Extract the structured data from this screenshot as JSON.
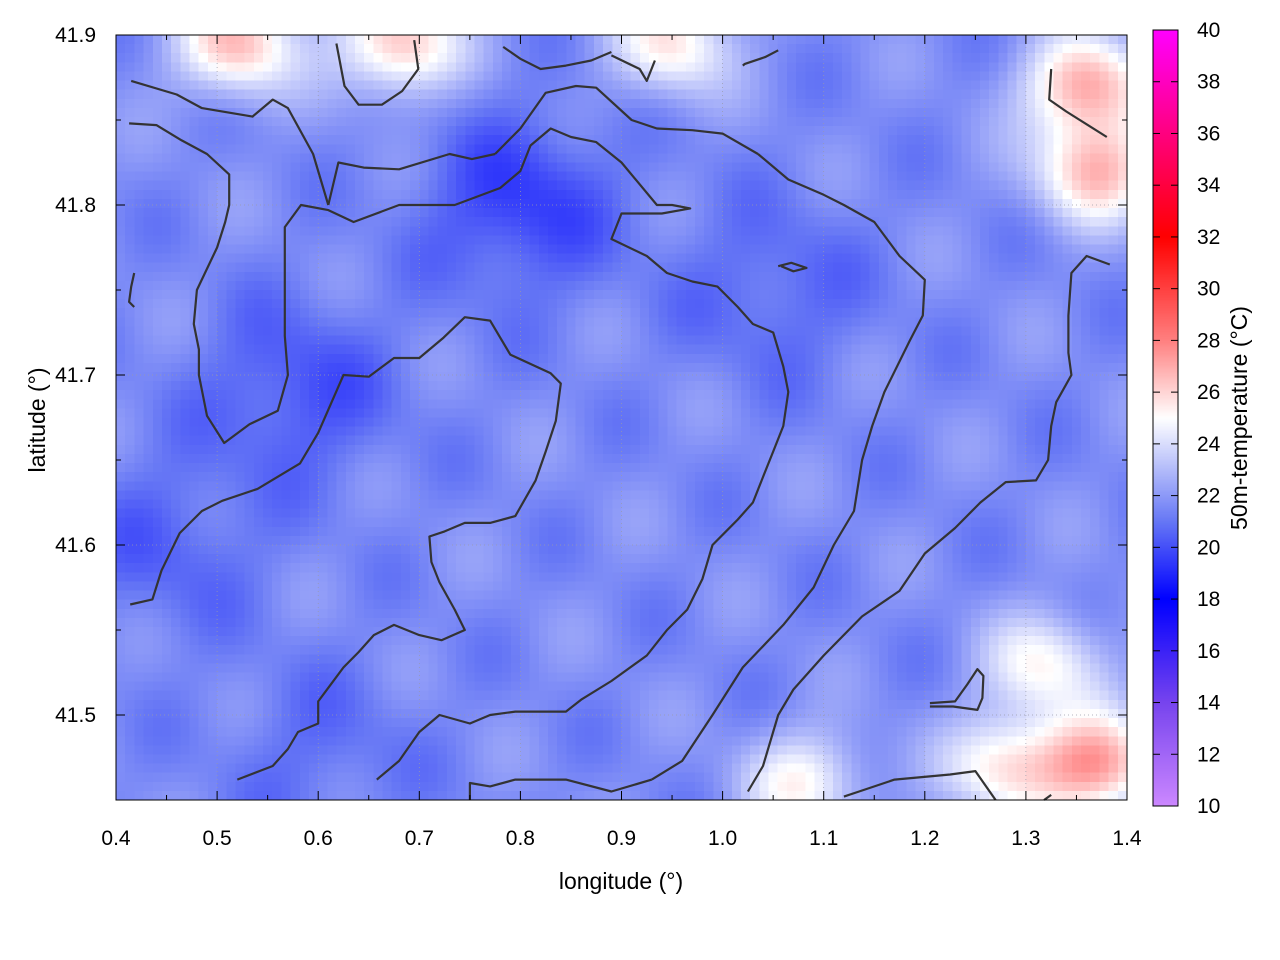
{
  "chart_data": {
    "type": "heatmap",
    "title": "",
    "xlabel": "longitude (°)",
    "ylabel": "latitude (°)",
    "colorbar_label": "50m-temperature (°C)",
    "xlim": [
      0.4,
      1.4
    ],
    "ylim": [
      41.45,
      41.9
    ],
    "x_ticks": [
      0.4,
      0.5,
      0.6,
      0.7,
      0.8,
      0.9,
      1.0,
      1.1,
      1.2,
      1.3,
      1.4
    ],
    "x_tick_labels": [
      "0.4",
      "0.5",
      "0.6",
      "0.7",
      "0.8",
      "0.9",
      "1.0",
      "1.1",
      "1.2",
      "1.3",
      "1.4"
    ],
    "y_ticks": [
      41.5,
      41.6,
      41.7,
      41.8,
      41.9
    ],
    "y_tick_labels": [
      "41.5",
      "41.6",
      "41.7",
      "41.8",
      "41.9"
    ],
    "colorbar_range": [
      10,
      40
    ],
    "colorbar_ticks": [
      10,
      12,
      14,
      16,
      18,
      20,
      22,
      24,
      26,
      28,
      30,
      32,
      34,
      36,
      38,
      40
    ],
    "colorbar_tick_labels": [
      "10",
      "12",
      "14",
      "16",
      "18",
      "20",
      "22",
      "24",
      "26",
      "28",
      "30",
      "32",
      "34",
      "36",
      "38",
      "40"
    ],
    "colormap_stops": [
      {
        "value": 10,
        "color": "#cc88ff"
      },
      {
        "value": 14,
        "color": "#7744ee"
      },
      {
        "value": 18,
        "color": "#0000ff"
      },
      {
        "value": 21,
        "color": "#6677f5"
      },
      {
        "value": 25,
        "color": "#ffffff"
      },
      {
        "value": 28,
        "color": "#ff8080"
      },
      {
        "value": 32,
        "color": "#ff0000"
      },
      {
        "value": 40,
        "color": "#ff00ff"
      }
    ],
    "grid": true,
    "contour_color": "#333333",
    "field": {
      "base_value": 21.6,
      "warm_regions": [
        {
          "lon": 0.52,
          "lat": 41.895,
          "peak": 26.5
        },
        {
          "lon": 0.68,
          "lat": 41.895,
          "peak": 26.5
        },
        {
          "lon": 0.95,
          "lat": 41.895,
          "peak": 25.5
        },
        {
          "lon": 1.36,
          "lat": 41.87,
          "peak": 27.0
        },
        {
          "lon": 1.37,
          "lat": 41.82,
          "peak": 26.5
        },
        {
          "lon": 1.28,
          "lat": 41.47,
          "peak": 25.5
        },
        {
          "lon": 1.37,
          "lat": 41.47,
          "peak": 27.0
        },
        {
          "lon": 1.08,
          "lat": 41.46,
          "peak": 25.0
        },
        {
          "lon": 1.32,
          "lat": 41.53,
          "peak": 25.0
        }
      ],
      "cool_regions": [
        {
          "lon": 0.8,
          "lat": 41.8,
          "peak": 19.5
        },
        {
          "lon": 0.58,
          "lat": 41.69,
          "peak": 20.0
        },
        {
          "lon": 0.45,
          "lat": 41.6,
          "peak": 20.5
        },
        {
          "lon": 1.05,
          "lat": 41.75,
          "peak": 20.5
        },
        {
          "lon": 0.6,
          "lat": 41.48,
          "peak": 20.8
        }
      ]
    },
    "contours": [
      [
        [
          0.415,
          41.873
        ],
        [
          0.46,
          41.865
        ],
        [
          0.485,
          41.857
        ],
        [
          0.535,
          41.852
        ],
        [
          0.555,
          41.862
        ],
        [
          0.57,
          41.857
        ],
        [
          0.595,
          41.83
        ],
        [
          0.61,
          41.8
        ]
      ],
      [
        [
          0.61,
          41.8
        ],
        [
          0.62,
          41.825
        ],
        [
          0.645,
          41.822
        ],
        [
          0.68,
          41.821
        ],
        [
          0.73,
          41.83
        ],
        [
          0.752,
          41.827
        ],
        [
          0.775,
          41.83
        ]
      ],
      [
        [
          0.775,
          41.83
        ],
        [
          0.8,
          41.845
        ],
        [
          0.825,
          41.866
        ],
        [
          0.855,
          41.87
        ],
        [
          0.875,
          41.869
        ],
        [
          0.91,
          41.85
        ],
        [
          0.935,
          41.845
        ],
        [
          0.97,
          41.844
        ],
        [
          1.0,
          41.842
        ],
        [
          1.035,
          41.83
        ]
      ],
      [
        [
          1.035,
          41.83
        ],
        [
          1.065,
          41.815
        ],
        [
          1.1,
          41.806
        ],
        [
          1.12,
          41.8
        ],
        [
          1.15,
          41.79
        ],
        [
          1.175,
          41.77
        ],
        [
          1.2,
          41.756
        ],
        [
          1.198,
          41.735
        ],
        [
          1.185,
          41.72
        ],
        [
          1.16,
          41.69
        ],
        [
          1.148,
          41.67
        ],
        [
          1.138,
          41.65
        ],
        [
          1.13,
          41.62
        ],
        [
          1.11,
          41.6
        ],
        [
          1.09,
          41.575
        ],
        [
          1.06,
          41.553
        ],
        [
          1.02,
          41.528
        ],
        [
          0.99,
          41.5
        ],
        [
          0.96,
          41.473
        ],
        [
          0.93,
          41.462
        ]
      ],
      [
        [
          0.93,
          41.462
        ],
        [
          0.89,
          41.455
        ],
        [
          0.845,
          41.462
        ],
        [
          0.795,
          41.462
        ],
        [
          0.77,
          41.458
        ],
        [
          0.75,
          41.46
        ],
        [
          0.75,
          41.45
        ]
      ],
      [
        [
          0.413,
          41.848
        ],
        [
          0.44,
          41.847
        ],
        [
          0.465,
          41.838
        ],
        [
          0.49,
          41.83
        ],
        [
          0.512,
          41.818
        ],
        [
          0.512,
          41.8
        ],
        [
          0.508,
          41.79
        ],
        [
          0.5,
          41.775
        ],
        [
          0.48,
          41.75
        ],
        [
          0.477,
          41.73
        ],
        [
          0.482,
          41.715
        ],
        [
          0.482,
          41.7
        ],
        [
          0.49,
          41.676
        ],
        [
          0.507,
          41.66
        ],
        [
          0.532,
          41.671
        ],
        [
          0.56,
          41.679
        ],
        [
          0.57,
          41.7
        ],
        [
          0.567,
          41.723
        ],
        [
          0.567,
          41.75
        ],
        [
          0.567,
          41.787
        ],
        [
          0.583,
          41.8
        ],
        [
          0.61,
          41.797
        ],
        [
          0.635,
          41.79
        ],
        [
          0.68,
          41.8
        ],
        [
          0.735,
          41.8
        ],
        [
          0.78,
          41.81
        ],
        [
          0.8,
          41.82
        ],
        [
          0.81,
          41.835
        ],
        [
          0.83,
          41.845
        ],
        [
          0.85,
          41.84
        ],
        [
          0.875,
          41.837
        ],
        [
          0.9,
          41.825
        ],
        [
          0.935,
          41.8
        ],
        [
          0.95,
          41.8
        ],
        [
          0.968,
          41.798
        ],
        [
          0.94,
          41.795
        ],
        [
          0.9,
          41.795
        ],
        [
          0.89,
          41.78
        ],
        [
          0.925,
          41.77
        ],
        [
          0.945,
          41.76
        ],
        [
          0.97,
          41.755
        ],
        [
          0.995,
          41.752
        ],
        [
          1.015,
          41.74
        ],
        [
          1.03,
          41.73
        ],
        [
          1.05,
          41.725
        ],
        [
          1.06,
          41.705
        ],
        [
          1.065,
          41.69
        ],
        [
          1.06,
          41.67
        ],
        [
          1.05,
          41.655
        ],
        [
          1.04,
          41.64
        ],
        [
          1.03,
          41.625
        ],
        [
          1.015,
          41.615
        ],
        [
          1.005,
          41.609
        ],
        [
          0.99,
          41.6
        ],
        [
          0.98,
          41.58
        ],
        [
          0.965,
          41.562
        ],
        [
          0.945,
          41.55
        ],
        [
          0.925,
          41.535
        ],
        [
          0.89,
          41.52
        ],
        [
          0.86,
          41.509
        ],
        [
          0.845,
          41.502
        ],
        [
          0.795,
          41.502
        ],
        [
          0.77,
          41.5
        ],
        [
          0.75,
          41.495
        ],
        [
          0.72,
          41.5
        ],
        [
          0.7,
          41.49
        ],
        [
          0.68,
          41.473
        ],
        [
          0.658,
          41.462
        ]
      ],
      [
        [
          0.414,
          41.565
        ],
        [
          0.436,
          41.568
        ],
        [
          0.445,
          41.585
        ],
        [
          0.463,
          41.607
        ],
        [
          0.485,
          41.62
        ],
        [
          0.505,
          41.626
        ],
        [
          0.54,
          41.633
        ],
        [
          0.568,
          41.643
        ],
        [
          0.582,
          41.648
        ],
        [
          0.6,
          41.666
        ],
        [
          0.625,
          41.7
        ],
        [
          0.65,
          41.699
        ],
        [
          0.675,
          41.71
        ],
        [
          0.7,
          41.71
        ],
        [
          0.724,
          41.722
        ],
        [
          0.745,
          41.734
        ],
        [
          0.77,
          41.732
        ],
        [
          0.79,
          41.712
        ],
        [
          0.83,
          41.701
        ],
        [
          0.84,
          41.695
        ],
        [
          0.835,
          41.673
        ],
        [
          0.825,
          41.655
        ],
        [
          0.815,
          41.638
        ],
        [
          0.795,
          41.617
        ],
        [
          0.77,
          41.613
        ],
        [
          0.745,
          41.613
        ],
        [
          0.725,
          41.608
        ],
        [
          0.71,
          41.605
        ],
        [
          0.712,
          41.59
        ],
        [
          0.72,
          41.578
        ],
        [
          0.735,
          41.562
        ],
        [
          0.745,
          41.55
        ],
        [
          0.722,
          41.544
        ],
        [
          0.7,
          41.547
        ],
        [
          0.675,
          41.553
        ],
        [
          0.655,
          41.547
        ],
        [
          0.64,
          41.537
        ],
        [
          0.625,
          41.528
        ],
        [
          0.61,
          41.516
        ],
        [
          0.6,
          41.508
        ],
        [
          0.6,
          41.495
        ],
        [
          0.58,
          41.49
        ],
        [
          0.57,
          41.48
        ],
        [
          0.555,
          41.47
        ],
        [
          0.52,
          41.462
        ]
      ],
      [
        [
          1.12,
          41.452
        ],
        [
          1.135,
          41.455
        ],
        [
          1.17,
          41.462
        ],
        [
          1.225,
          41.465
        ],
        [
          1.25,
          41.467
        ],
        [
          1.27,
          41.45
        ]
      ],
      [
        [
          1.205,
          41.507
        ],
        [
          1.23,
          41.508
        ],
        [
          1.242,
          41.518
        ],
        [
          1.252,
          41.527
        ],
        [
          1.258,
          41.523
        ],
        [
          1.257,
          41.51
        ],
        [
          1.252,
          41.503
        ],
        [
          1.228,
          41.505
        ],
        [
          1.205,
          41.505
        ]
      ],
      [
        [
          1.025,
          41.455
        ],
        [
          1.04,
          41.47
        ],
        [
          1.055,
          41.5
        ],
        [
          1.07,
          41.515
        ],
        [
          1.1,
          41.535
        ],
        [
          1.138,
          41.558
        ],
        [
          1.175,
          41.573
        ],
        [
          1.2,
          41.595
        ],
        [
          1.23,
          41.61
        ],
        [
          1.255,
          41.625
        ],
        [
          1.28,
          41.637
        ],
        [
          1.31,
          41.638
        ],
        [
          1.322,
          41.65
        ],
        [
          1.325,
          41.67
        ],
        [
          1.33,
          41.684
        ],
        [
          1.345,
          41.7
        ],
        [
          1.342,
          41.713
        ],
        [
          1.342,
          41.735
        ],
        [
          1.345,
          41.76
        ],
        [
          1.36,
          41.77
        ],
        [
          1.383,
          41.765
        ]
      ],
      [
        [
          1.055,
          41.764
        ],
        [
          1.068,
          41.766
        ],
        [
          1.083,
          41.763
        ],
        [
          1.07,
          41.761
        ],
        [
          1.058,
          41.764
        ]
      ],
      [
        [
          0.618,
          41.895
        ],
        [
          0.626,
          41.87
        ],
        [
          0.64,
          41.859
        ],
        [
          0.663,
          41.859
        ],
        [
          0.683,
          41.867
        ],
        [
          0.699,
          41.88
        ],
        [
          0.695,
          41.897
        ]
      ],
      [
        [
          0.783,
          41.893
        ],
        [
          0.8,
          41.886
        ],
        [
          0.82,
          41.88
        ],
        [
          0.845,
          41.882
        ],
        [
          0.87,
          41.885
        ],
        [
          0.89,
          41.89
        ]
      ],
      [
        [
          0.89,
          41.888
        ],
        [
          0.918,
          41.88
        ],
        [
          0.925,
          41.873
        ],
        [
          0.933,
          41.885
        ]
      ],
      [
        [
          1.02,
          41.882
        ],
        [
          1.022,
          41.883
        ],
        [
          1.042,
          41.887
        ],
        [
          1.055,
          41.891
        ]
      ],
      [
        [
          1.325,
          41.88
        ],
        [
          1.323,
          41.862
        ],
        [
          1.34,
          41.855
        ],
        [
          1.38,
          41.84
        ]
      ],
      [
        [
          0.418,
          41.76
        ],
        [
          0.415,
          41.752
        ],
        [
          0.413,
          41.743
        ],
        [
          0.418,
          41.74
        ]
      ],
      [
        [
          1.318,
          41.45
        ],
        [
          1.325,
          41.453
        ]
      ]
    ]
  }
}
